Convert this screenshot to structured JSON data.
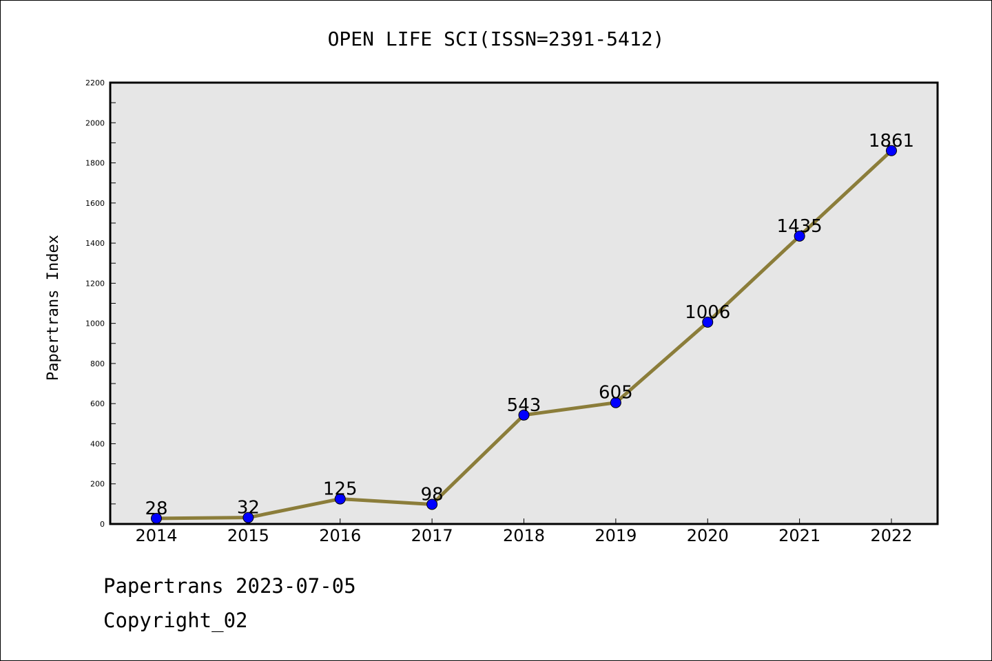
{
  "chart_data": {
    "type": "line",
    "title": "OPEN LIFE SCI(ISSN=2391-5412)",
    "xlabel": "",
    "ylabel": "Papertrans Index",
    "categories": [
      "2014",
      "2015",
      "2016",
      "2017",
      "2018",
      "2019",
      "2020",
      "2021",
      "2022"
    ],
    "series": [
      {
        "values": [
          28,
          32,
          125,
          98,
          543,
          605,
          1006,
          1435,
          1861
        ],
        "line_color": "#8b7d3a",
        "marker_color": "#0000ff"
      }
    ],
    "data_labels": [
      "28",
      "32",
      "125",
      "98",
      "543",
      "605",
      "1006",
      "1435",
      "1861"
    ],
    "ylim": [
      0,
      2200
    ],
    "yticks": [
      0,
      200,
      400,
      600,
      800,
      1000,
      1200,
      1400,
      1600,
      1800,
      2000,
      2200
    ],
    "ytick_labels": [
      "0",
      "200",
      "400",
      "600",
      "800",
      "1000",
      "1200",
      "1400",
      "1600",
      "1800",
      "2000",
      "2200"
    ],
    "plot_background": "#e6e6e6",
    "grid": false,
    "legend": "none"
  },
  "footer": {
    "line1": "Papertrans 2023-07-05",
    "line2": "Copyright_02"
  }
}
